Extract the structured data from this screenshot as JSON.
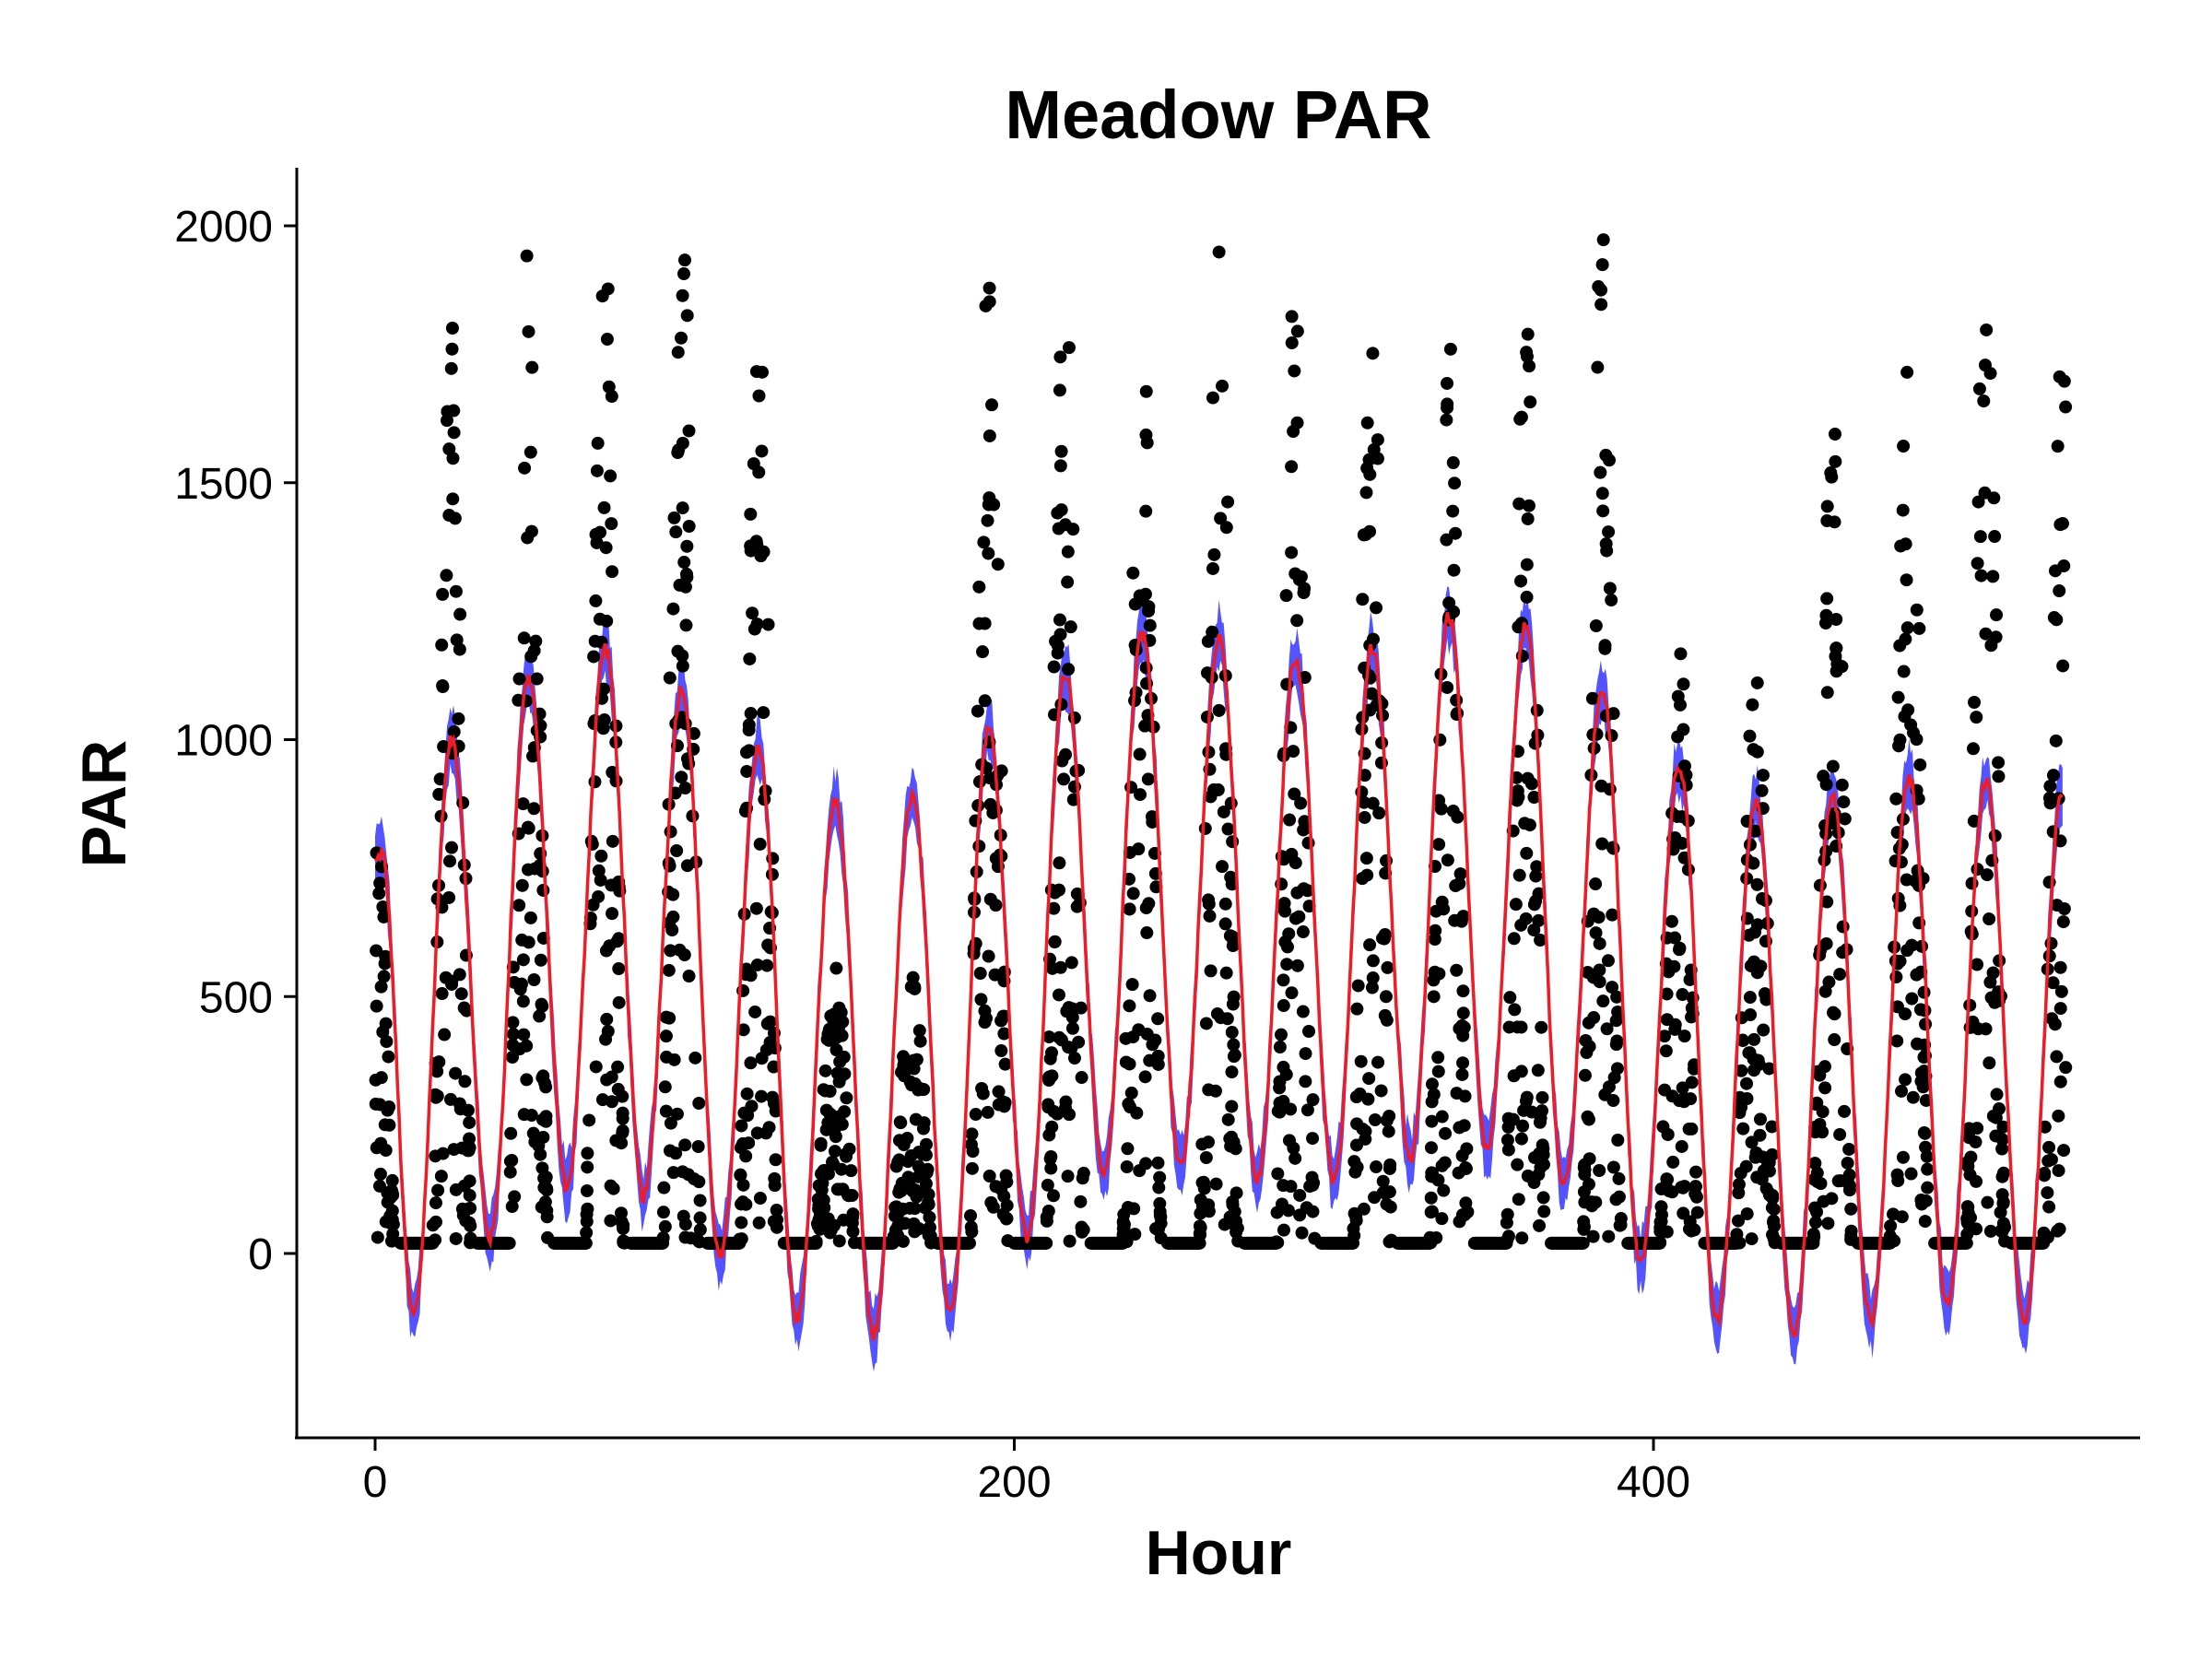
{
  "chart_data": {
    "type": "scatter",
    "title": "Meadow PAR",
    "xlabel": "Hour",
    "ylabel": "PAR",
    "xlim": [
      -12,
      540
    ],
    "ylim": [
      -355,
      2120
    ],
    "x_ticks": [
      0,
      200,
      400
    ],
    "y_ticks": [
      0,
      500,
      1000,
      1500,
      2000
    ],
    "grid": false,
    "legend": "none",
    "colors": {
      "points": "#000000",
      "fit_line": "#ee1c25",
      "confidence_band": "#4a4aff"
    },
    "series": [
      {
        "kind": "points",
        "description_days": [
          {
            "day": 0,
            "peak": 850
          },
          {
            "day": 1,
            "peak": 1790
          },
          {
            "day": 2,
            "peak": 1980
          },
          {
            "day": 3,
            "peak": 1970
          },
          {
            "day": 4,
            "peak": 2010
          },
          {
            "day": 5,
            "peak": 1820
          },
          {
            "day": 6,
            "peak": 540
          },
          {
            "day": 7,
            "peak": 520
          },
          {
            "day": 8,
            "peak": 1910
          },
          {
            "day": 9,
            "peak": 1990
          },
          {
            "day": 10,
            "peak": 1780
          },
          {
            "day": 11,
            "peak": 1935
          },
          {
            "day": 12,
            "peak": 1930
          },
          {
            "day": 13,
            "peak": 1820
          },
          {
            "day": 14,
            "peak": 1760
          },
          {
            "day": 15,
            "peak": 1860
          },
          {
            "day": 16,
            "peak": 1965
          },
          {
            "day": 17,
            "peak": 1170
          },
          {
            "day": 18,
            "peak": 1120
          },
          {
            "day": 19,
            "peak": 1620
          },
          {
            "day": 20,
            "peak": 1820
          },
          {
            "day": 21,
            "peak": 1920
          },
          {
            "day": 22,
            "peak": 1790
          }
        ]
      },
      {
        "kind": "fit",
        "daily_peaks": [
          {
            "hour": 2,
            "value": 780
          },
          {
            "hour": 24,
            "value": 1000
          },
          {
            "hour": 48,
            "value": 1120
          },
          {
            "hour": 72,
            "value": 1180
          },
          {
            "hour": 96,
            "value": 1100
          },
          {
            "hour": 120,
            "value": 980
          },
          {
            "hour": 144,
            "value": 880
          },
          {
            "hour": 168,
            "value": 890
          },
          {
            "hour": 192,
            "value": 1020
          },
          {
            "hour": 216,
            "value": 1130
          },
          {
            "hour": 240,
            "value": 1210
          },
          {
            "hour": 264,
            "value": 1200
          },
          {
            "hour": 288,
            "value": 1160
          },
          {
            "hour": 312,
            "value": 1180
          },
          {
            "hour": 336,
            "value": 1240
          },
          {
            "hour": 360,
            "value": 1220
          },
          {
            "hour": 384,
            "value": 1100
          },
          {
            "hour": 408,
            "value": 950
          },
          {
            "hour": 432,
            "value": 880
          },
          {
            "hour": 456,
            "value": 890
          },
          {
            "hour": 480,
            "value": 930
          },
          {
            "hour": 504,
            "value": 920
          },
          {
            "hour": 528,
            "value": 900
          }
        ],
        "daily_troughs": [
          {
            "hour": 12,
            "value": -120
          },
          {
            "hour": 36,
            "value": 30
          },
          {
            "hour": 60,
            "value": 130
          },
          {
            "hour": 84,
            "value": 110
          },
          {
            "hour": 108,
            "value": -10
          },
          {
            "hour": 132,
            "value": -130
          },
          {
            "hour": 156,
            "value": -160
          },
          {
            "hour": 180,
            "value": -110
          },
          {
            "hour": 204,
            "value": 30
          },
          {
            "hour": 228,
            "value": 150
          },
          {
            "hour": 252,
            "value": 170
          },
          {
            "hour": 276,
            "value": 140
          },
          {
            "hour": 300,
            "value": 140
          },
          {
            "hour": 324,
            "value": 180
          },
          {
            "hour": 348,
            "value": 200
          },
          {
            "hour": 372,
            "value": 130
          },
          {
            "hour": 396,
            "value": -20
          },
          {
            "hour": 420,
            "value": -130
          },
          {
            "hour": 444,
            "value": -150
          },
          {
            "hour": 468,
            "value": -130
          },
          {
            "hour": 492,
            "value": -100
          },
          {
            "hour": 516,
            "value": -130
          }
        ],
        "confidence_halfwidth": 55
      }
    ]
  }
}
